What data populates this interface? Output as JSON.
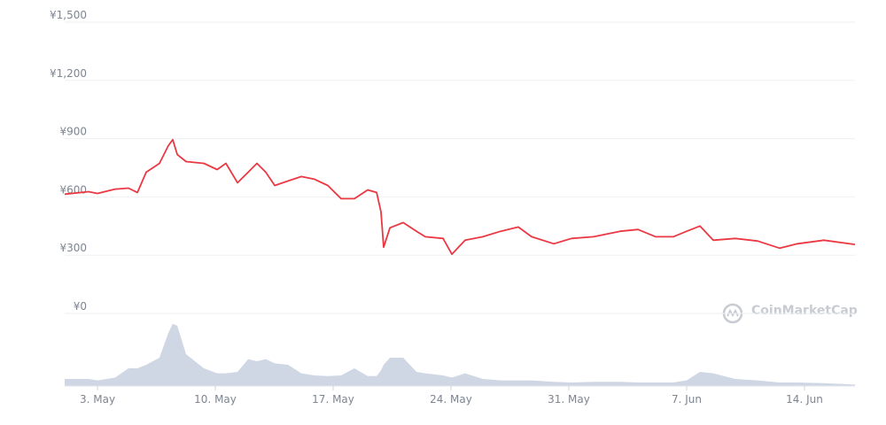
{
  "chart_data": {
    "type": "line",
    "watermark": "CoinMarketCap",
    "x": [
      1.05,
      2.47,
      3,
      4.05,
      4.84,
      5.37,
      5.89,
      6.68,
      7.21,
      7.47,
      7.74,
      8.26,
      9.32,
      10.11,
      10.63,
      11.32,
      11.95,
      12.47,
      13,
      13.53,
      14.32,
      15.11,
      15.89,
      16.68,
      17.47,
      18.26,
      19.05,
      19.58,
      19.84,
      20,
      20.37,
      21.16,
      21.95,
      22.47,
      23.53,
      24.05,
      24.84,
      25.89,
      26.95,
      28,
      28.79,
      30.11,
      31.16,
      32.47,
      34.05,
      35.11,
      36.16,
      37.21,
      38,
      38.79,
      39.58,
      40.89,
      42.21,
      43.53,
      44.58,
      46.16,
      48
    ],
    "xlim": [
      1.05,
      48
    ],
    "xticks": [
      {
        "value": 3,
        "label": "3. May"
      },
      {
        "value": 10,
        "label": "10. May"
      },
      {
        "value": 17,
        "label": "17. May"
      },
      {
        "value": 24,
        "label": "24. May"
      },
      {
        "value": 31,
        "label": "31. May"
      },
      {
        "value": 38,
        "label": "7. Jun"
      },
      {
        "value": 45,
        "label": "14. Jun"
      }
    ],
    "ylim": [
      0,
      1500
    ],
    "yticks": [
      {
        "value": 0,
        "label": "¥0"
      },
      {
        "value": 300,
        "label": "¥300"
      },
      {
        "value": 600,
        "label": "¥600"
      },
      {
        "value": 900,
        "label": "¥900"
      },
      {
        "value": 1200,
        "label": "¥1,200"
      },
      {
        "value": 1500,
        "label": "¥1,500"
      }
    ],
    "grid": true,
    "series": [
      {
        "color": "#ea3943",
        "values": [
          614,
          627,
          618,
          640,
          645,
          623,
          727,
          773,
          864,
          895,
          818,
          782,
          773,
          741,
          773,
          673,
          727,
          773,
          727,
          659,
          682,
          705,
          691,
          659,
          591,
          591,
          636,
          623,
          523,
          341,
          441,
          468,
          423,
          395,
          386,
          305,
          377,
          395,
          423,
          445,
          395,
          359,
          386,
          395,
          423,
          432,
          395,
          395,
          423,
          450,
          377,
          386,
          373,
          336,
          359,
          377,
          355
        ]
      }
    ],
    "volume": {
      "color": "#cfd6e4",
      "ylim": [
        0,
        100
      ],
      "values": [
        10,
        10,
        8,
        12,
        25,
        25,
        30,
        40,
        75,
        88,
        85,
        45,
        25,
        18,
        18,
        20,
        38,
        35,
        38,
        32,
        30,
        18,
        15,
        14,
        15,
        25,
        14,
        14,
        22,
        30,
        40,
        40,
        20,
        18,
        15,
        12,
        18,
        10,
        8,
        8,
        8,
        6,
        5,
        6,
        6,
        5,
        5,
        5,
        8,
        20,
        18,
        10,
        8,
        5,
        5,
        4,
        2
      ]
    }
  }
}
